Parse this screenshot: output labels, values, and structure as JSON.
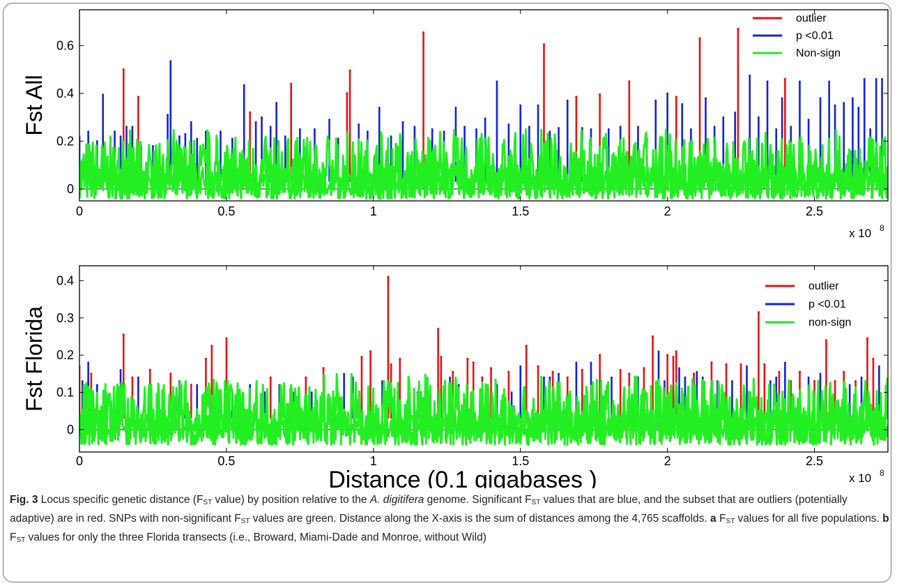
{
  "chart_data": [
    {
      "type": "line",
      "panel": "a",
      "ylabel": "Fst All",
      "xlabel": "",
      "x_exponent_label": "x 10",
      "x_exponent": "8",
      "xlim": [
        0,
        2.75
      ],
      "ylim": [
        -0.05,
        0.75
      ],
      "x_ticks": [
        0,
        0.5,
        1,
        1.5,
        2,
        2.5
      ],
      "x_tick_labels": [
        "0",
        "0.5",
        "1",
        "1.5",
        "2",
        "2.5"
      ],
      "y_ticks": [
        0,
        0.2,
        0.4,
        0.6
      ],
      "y_tick_labels": [
        "0",
        "0.2",
        "0.4",
        "0.6"
      ],
      "legend_position": "top-right",
      "grid": false,
      "series": [
        {
          "name": "outlier",
          "color": "#ee1111",
          "x": [
            0.15,
            0.2,
            0.58,
            0.72,
            0.91,
            0.92,
            1.17,
            1.58,
            1.69,
            1.77,
            1.87,
            2.03,
            2.11,
            2.24,
            2.4
          ],
          "y": [
            0.5,
            0.385,
            0.32,
            0.44,
            0.4,
            0.495,
            0.655,
            0.605,
            0.385,
            0.395,
            0.45,
            0.385,
            0.63,
            0.67,
            0.46
          ]
        },
        {
          "name": "p <0.01",
          "color": "#1122dd",
          "x": [
            0.0,
            0.03,
            0.06,
            0.08,
            0.12,
            0.14,
            0.16,
            0.18,
            0.21,
            0.25,
            0.3,
            0.31,
            0.34,
            0.36,
            0.38,
            0.4,
            0.43,
            0.48,
            0.52,
            0.56,
            0.6,
            0.62,
            0.65,
            0.67,
            0.7,
            0.75,
            0.8,
            0.85,
            0.88,
            0.95,
            0.98,
            1.02,
            1.06,
            1.1,
            1.14,
            1.2,
            1.24,
            1.28,
            1.31,
            1.35,
            1.38,
            1.42,
            1.46,
            1.5,
            1.53,
            1.56,
            1.6,
            1.63,
            1.66,
            1.71,
            1.74,
            1.8,
            1.84,
            1.9,
            1.93,
            1.96,
            2.0,
            2.05,
            2.08,
            2.13,
            2.16,
            2.19,
            2.23,
            2.28,
            2.31,
            2.34,
            2.37,
            2.39,
            2.42,
            2.45,
            2.48,
            2.52,
            2.55,
            2.57,
            2.6,
            2.63,
            2.65,
            2.67,
            2.69,
            2.71,
            2.73
          ],
          "y": [
            0.22,
            0.24,
            0.2,
            0.395,
            0.24,
            0.22,
            0.26,
            0.26,
            0.18,
            0.18,
            0.31,
            0.535,
            0.22,
            0.23,
            0.28,
            0.21,
            0.24,
            0.24,
            0.21,
            0.435,
            0.28,
            0.3,
            0.26,
            0.36,
            0.22,
            0.25,
            0.25,
            0.29,
            0.21,
            0.27,
            0.24,
            0.34,
            0.22,
            0.28,
            0.26,
            0.25,
            0.24,
            0.34,
            0.26,
            0.25,
            0.295,
            0.45,
            0.27,
            0.35,
            0.26,
            0.35,
            0.24,
            0.255,
            0.37,
            0.255,
            0.25,
            0.25,
            0.26,
            0.26,
            0.21,
            0.37,
            0.4,
            0.355,
            0.25,
            0.38,
            0.26,
            0.3,
            0.32,
            0.475,
            0.3,
            0.45,
            0.25,
            0.38,
            0.26,
            0.45,
            0.29,
            0.38,
            0.45,
            0.35,
            0.36,
            0.38,
            0.34,
            0.46,
            0.25,
            0.46,
            0.46
          ]
        },
        {
          "name": "Non-sign",
          "color": "#22ee22",
          "x": [],
          "y": [],
          "range": [
            -0.04,
            0.25
          ]
        }
      ]
    },
    {
      "type": "line",
      "panel": "b",
      "ylabel": "Fst Florida",
      "xlabel": "Distance (0.1 gigabases )",
      "x_exponent_label": "x 10",
      "x_exponent": "8",
      "xlim": [
        0,
        2.75
      ],
      "ylim": [
        -0.06,
        0.44
      ],
      "x_ticks": [
        0,
        0.5,
        1,
        1.5,
        2,
        2.5
      ],
      "x_tick_labels": [
        "0",
        "0.5",
        "1",
        "1.5",
        "2",
        "2.5"
      ],
      "y_ticks": [
        0,
        0.1,
        0.2,
        0.3,
        0.4
      ],
      "y_tick_labels": [
        "0",
        "0.1",
        "0.2",
        "0.3",
        "0.4"
      ],
      "legend_position": "top-right",
      "grid": false,
      "series": [
        {
          "name": "outlier",
          "color": "#ee1111",
          "x": [
            0.0,
            0.04,
            0.15,
            0.18,
            0.24,
            0.31,
            0.38,
            0.43,
            0.45,
            0.5,
            0.65,
            0.77,
            0.83,
            0.96,
            0.99,
            1.05,
            1.06,
            1.09,
            1.22,
            1.23,
            1.27,
            1.32,
            1.34,
            1.37,
            1.4,
            1.46,
            1.52,
            1.56,
            1.61,
            1.66,
            1.71,
            1.77,
            1.84,
            1.87,
            1.92,
            1.95,
            2.0,
            2.02,
            2.03,
            2.09,
            2.15,
            2.2,
            2.25,
            2.31,
            2.33,
            2.38,
            2.42,
            2.45,
            2.5,
            2.54,
            2.57,
            2.6,
            2.64,
            2.68,
            2.7
          ],
          "y": [
            0.17,
            0.15,
            0.255,
            0.14,
            0.16,
            0.15,
            0.12,
            0.19,
            0.225,
            0.245,
            0.14,
            0.14,
            0.165,
            0.195,
            0.21,
            0.41,
            0.175,
            0.19,
            0.27,
            0.195,
            0.155,
            0.19,
            0.18,
            0.14,
            0.165,
            0.155,
            0.225,
            0.17,
            0.155,
            0.14,
            0.16,
            0.2,
            0.16,
            0.15,
            0.165,
            0.25,
            0.2,
            0.195,
            0.21,
            0.15,
            0.18,
            0.175,
            0.175,
            0.315,
            0.175,
            0.155,
            0.13,
            0.155,
            0.13,
            0.24,
            0.13,
            0.155,
            0.13,
            0.245,
            0.19
          ]
        },
        {
          "name": "p <0.01",
          "color": "#1122dd",
          "x": [
            0.01,
            0.03,
            0.06,
            0.09,
            0.14,
            0.2,
            0.27,
            0.34,
            0.36,
            0.4,
            0.47,
            0.52,
            0.58,
            0.63,
            0.68,
            0.73,
            0.79,
            0.9,
            0.93,
            1.03,
            1.12,
            1.15,
            1.26,
            1.29,
            1.42,
            1.47,
            1.5,
            1.58,
            1.6,
            1.63,
            1.69,
            1.74,
            1.81,
            1.89,
            1.9,
            1.97,
            1.99,
            2.04,
            2.06,
            2.1,
            2.12,
            2.17,
            2.22,
            2.27,
            2.35,
            2.37,
            2.4,
            2.48,
            2.52,
            2.62,
            2.66,
            2.72
          ],
          "y": [
            0.13,
            0.18,
            0.12,
            0.1,
            0.16,
            0.14,
            0.1,
            0.13,
            0.1,
            0.12,
            0.1,
            0.1,
            0.12,
            0.1,
            0.12,
            0.1,
            0.1,
            0.15,
            0.14,
            0.13,
            0.12,
            0.1,
            0.14,
            0.12,
            0.12,
            0.1,
            0.17,
            0.14,
            0.14,
            0.15,
            0.18,
            0.18,
            0.14,
            0.12,
            0.14,
            0.21,
            0.13,
            0.165,
            0.14,
            0.155,
            0.14,
            0.13,
            0.13,
            0.17,
            0.13,
            0.14,
            0.18,
            0.14,
            0.15,
            0.12,
            0.14,
            0.17
          ]
        },
        {
          "name": "non-sign",
          "color": "#22ee22",
          "x": [],
          "y": [],
          "range": [
            -0.04,
            0.15
          ]
        }
      ]
    }
  ],
  "caption": {
    "label": "Fig. 3",
    "parts": [
      {
        "t": "Locus specific genetic distance (F",
        "s": "n"
      },
      {
        "t": "ST",
        "s": "sub"
      },
      {
        "t": " value) by position relative to the ",
        "s": "n"
      },
      {
        "t": "A. digitifera",
        "s": "i"
      },
      {
        "t": " genome. Significant F",
        "s": "n"
      },
      {
        "t": "ST",
        "s": "sub"
      },
      {
        "t": " values that are blue, and the subset that are outliers (potentially adaptive) are in red. SNPs with non-significant F",
        "s": "n"
      },
      {
        "t": "ST",
        "s": "sub"
      },
      {
        "t": " values are green. Distance along the X-axis is the sum of distances among the 4,765 scaffolds. ",
        "s": "n"
      },
      {
        "t": "a",
        "s": "b"
      },
      {
        "t": " F",
        "s": "n"
      },
      {
        "t": "ST",
        "s": "sub"
      },
      {
        "t": " values for all five populations. ",
        "s": "n"
      },
      {
        "t": "b",
        "s": "b"
      },
      {
        "t": " F",
        "s": "n"
      },
      {
        "t": "ST",
        "s": "sub"
      },
      {
        "t": " values for only the three Florida transects (i.e., Broward, Miami-Dade and Monroe, without Wild)",
        "s": "n"
      }
    ]
  }
}
